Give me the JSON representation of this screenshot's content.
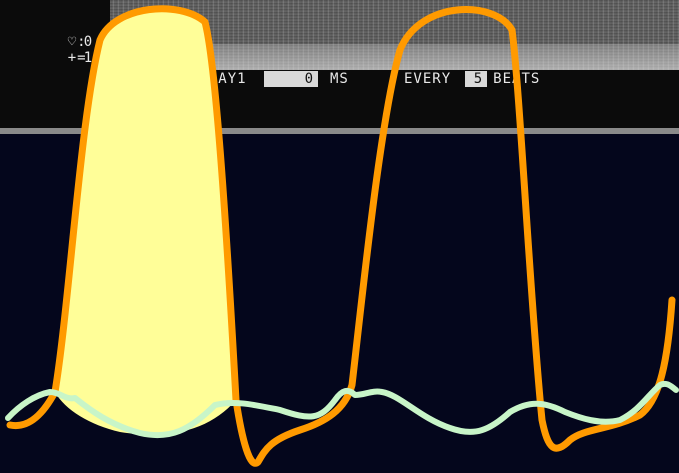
{
  "readouts": [
    {
      "icon": "heart-rate-icon",
      "symbol": "♡:",
      "value": "0"
    },
    {
      "icon": "plus-icon",
      "symbol": "+=",
      "value": "100"
    }
  ],
  "settings": {
    "delay_label": "DELAY1",
    "delay_value": "0",
    "delay_unit": "MS",
    "every_label": "EVERY",
    "every_value": "5",
    "every_unit": "BEATS"
  },
  "colors": {
    "background": "#04061c",
    "pressure_trace": "#ff9a00",
    "pressure_fill": "#fffe98",
    "secondary_trace": "#c8f5c8"
  }
}
